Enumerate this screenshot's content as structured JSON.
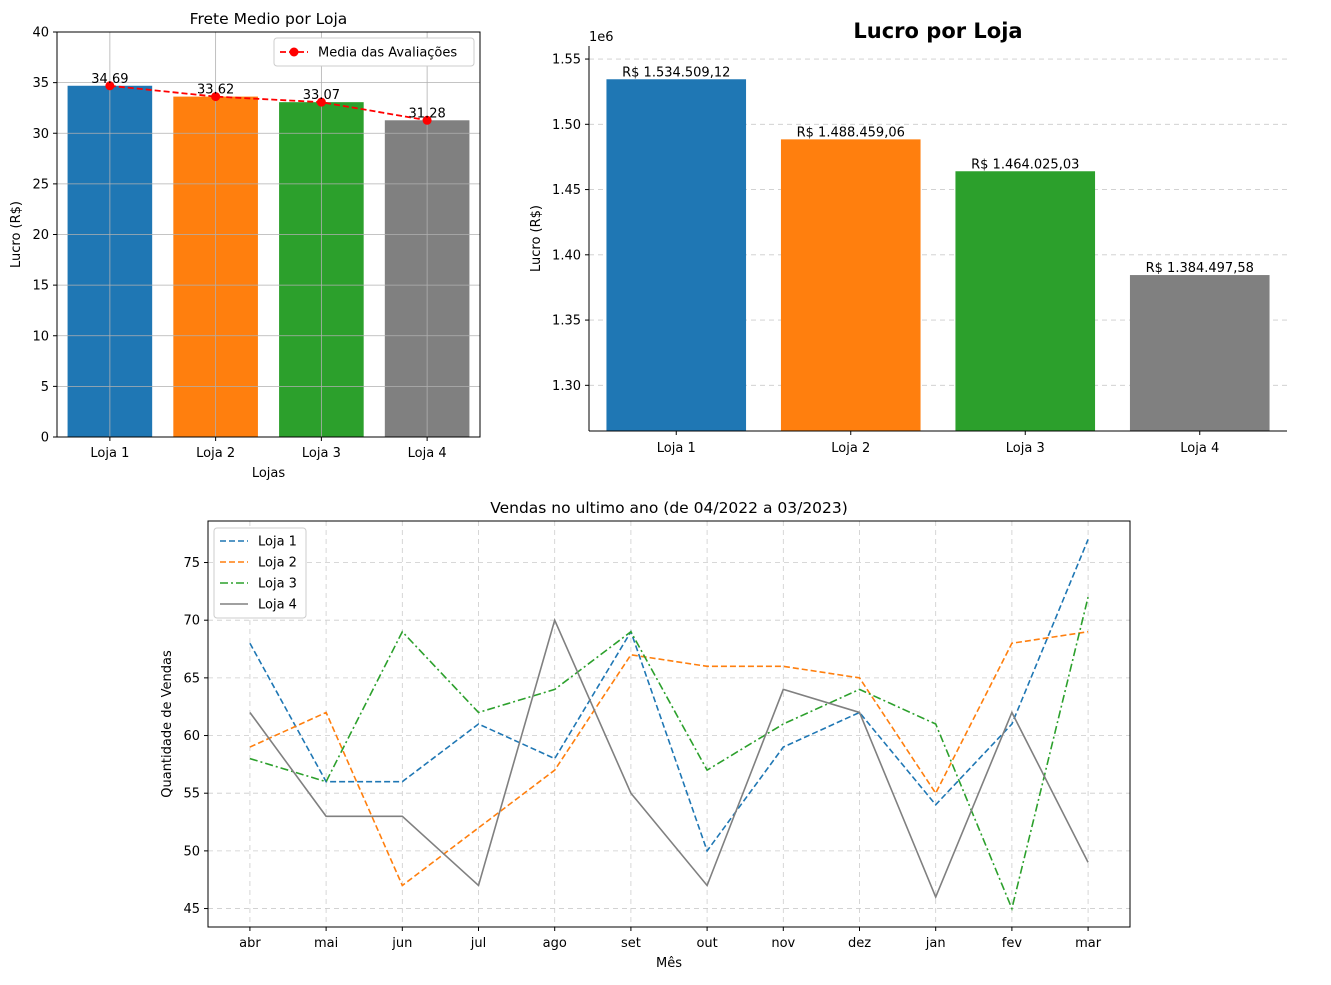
{
  "chart_data": [
    {
      "type": "bar",
      "title": "Frete Medio por Loja",
      "xlabel": "Lojas",
      "ylabel": "Lucro (R$)",
      "categories": [
        "Loja 1",
        "Loja 2",
        "Loja 3",
        "Loja 4"
      ],
      "values": [
        34.69,
        33.62,
        33.07,
        31.28
      ],
      "bar_colors": [
        "#1f77b4",
        "#ff7f0e",
        "#2ca02c",
        "#808080"
      ],
      "data_labels": [
        "34.69",
        "33.62",
        "33.07",
        "31.28"
      ],
      "ylim": [
        0,
        40
      ],
      "yticks": [
        0,
        5,
        10,
        15,
        20,
        25,
        30,
        35,
        40
      ],
      "grid": true,
      "overlay_line": {
        "name": "Media das Avaliações",
        "values": [
          34.69,
          33.62,
          33.07,
          31.28
        ],
        "color": "#ff0000",
        "style": "dashed",
        "marker": "circle"
      },
      "legend": {
        "position": "top-right",
        "entries": [
          "Media das Avaliações"
        ]
      }
    },
    {
      "type": "bar",
      "title": "Lucro por Loja",
      "xlabel": "",
      "ylabel": "Lucro (R$)",
      "offset_label": "1e6",
      "categories": [
        "Loja 1",
        "Loja 2",
        "Loja 3",
        "Loja 4"
      ],
      "values": [
        1534509.12,
        1488459.06,
        1464025.03,
        1384497.58
      ],
      "bar_colors": [
        "#1f77b4",
        "#ff7f0e",
        "#2ca02c",
        "#808080"
      ],
      "data_labels": [
        "R$ 1.534.509,12",
        "R$ 1.488.459,06",
        "R$ 1.464.025,03",
        "R$ 1.384.497,58"
      ],
      "ylim": [
        1265000,
        1560000
      ],
      "yticks": [
        1300000,
        1350000,
        1400000,
        1450000,
        1500000,
        1550000
      ],
      "ytick_labels": [
        "1.30",
        "1.35",
        "1.40",
        "1.45",
        "1.50",
        "1.55"
      ],
      "grid": "y-dashed"
    },
    {
      "type": "line",
      "title": "Vendas no ultimo ano (de 04/2022 a 03/2023)",
      "xlabel": "Mês",
      "ylabel": "Quantidade de Vendas",
      "categories": [
        "abr",
        "mai",
        "jun",
        "jul",
        "ago",
        "set",
        "out",
        "nov",
        "dez",
        "jan",
        "fev",
        "mar"
      ],
      "ylim": [
        43.4,
        78.6
      ],
      "yticks": [
        45,
        50,
        55,
        60,
        65,
        70,
        75
      ],
      "grid": "dashed",
      "legend": {
        "position": "top-left"
      },
      "series": [
        {
          "name": "Loja 1",
          "color": "#1f77b4",
          "style": "dashed",
          "values": [
            68,
            56,
            56,
            61,
            58,
            69,
            50,
            59,
            62,
            54,
            61,
            77
          ]
        },
        {
          "name": "Loja 2",
          "color": "#ff7f0e",
          "style": "dashed",
          "values": [
            59,
            62,
            47,
            52,
            57,
            67,
            66,
            66,
            65,
            55,
            68,
            69
          ]
        },
        {
          "name": "Loja 3",
          "color": "#2ca02c",
          "style": "dashdot",
          "values": [
            58,
            56,
            69,
            62,
            64,
            69,
            57,
            61,
            64,
            61,
            45,
            72
          ]
        },
        {
          "name": "Loja 4",
          "color": "#808080",
          "style": "solid",
          "values": [
            62,
            53,
            53,
            47,
            70,
            55,
            47,
            64,
            62,
            46,
            62,
            49
          ]
        }
      ]
    }
  ]
}
